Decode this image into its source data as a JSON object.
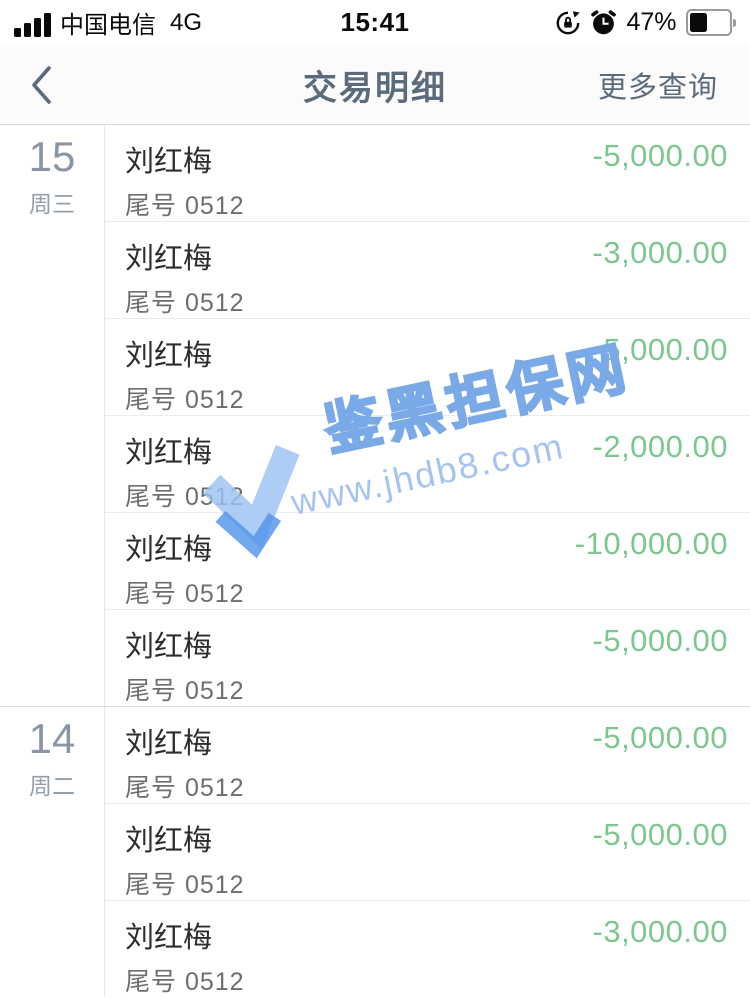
{
  "status_bar": {
    "carrier": "中国电信",
    "network": "4G",
    "time": "15:41",
    "battery_percent": "47%",
    "battery_level": 0.47
  },
  "nav": {
    "title": "交易明细",
    "more_label": "更多查询"
  },
  "icons": {
    "signal": "signal-bars-icon",
    "rotation_lock": "rotation-lock-icon",
    "alarm": "alarm-clock-icon",
    "battery": "battery-icon",
    "back": "chevron-left-icon",
    "watermark_logo": "check-ribbon-logo-icon"
  },
  "colors": {
    "amount_green": "#7cc78e",
    "nav_slate": "#5c6b7c",
    "date_gray": "#8b96a4",
    "watermark_blue": "#79a9e6"
  },
  "watermark": {
    "brand": "鉴黑担保网",
    "url": "www.jhdb8.com"
  },
  "groups": [
    {
      "day": "15",
      "weekday": "周三",
      "transactions": [
        {
          "name": "刘红梅",
          "account": "尾号 0512",
          "amount": "-5,000.00"
        },
        {
          "name": "刘红梅",
          "account": "尾号 0512",
          "amount": "-3,000.00"
        },
        {
          "name": "刘红梅",
          "account": "尾号 0512",
          "amount": "-5,000.00"
        },
        {
          "name": "刘红梅",
          "account": "尾号 0512",
          "amount": "-2,000.00"
        },
        {
          "name": "刘红梅",
          "account": "尾号 0512",
          "amount": "-10,000.00"
        },
        {
          "name": "刘红梅",
          "account": "尾号 0512",
          "amount": "-5,000.00"
        }
      ]
    },
    {
      "day": "14",
      "weekday": "周二",
      "transactions": [
        {
          "name": "刘红梅",
          "account": "尾号 0512",
          "amount": "-5,000.00"
        },
        {
          "name": "刘红梅",
          "account": "尾号 0512",
          "amount": "-5,000.00"
        },
        {
          "name": "刘红梅",
          "account": "尾号 0512",
          "amount": "-3,000.00"
        }
      ]
    }
  ]
}
